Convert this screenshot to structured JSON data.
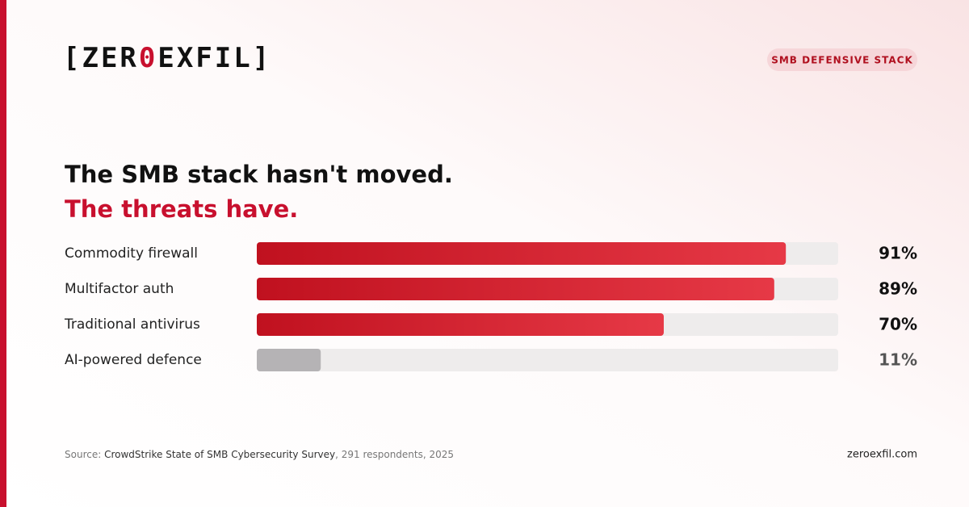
{
  "logo": [
    "[",
    "ZER",
    "0",
    "EXFIL",
    "]"
  ],
  "badge": "SMB DEFENSIVE STACK",
  "chart_data": {
    "type": "hbar",
    "title": "The SMB stack hasn't moved.",
    "subtitle": "The threats have.",
    "categories": [
      "Commodity firewall",
      "Multifactor auth",
      "Traditional antivirus",
      "AI-powered defence"
    ],
    "values": [
      91,
      89,
      70,
      11
    ],
    "value_labels": [
      "91%",
      "89%",
      "70%",
      "11%"
    ],
    "colors": [
      "#c8102e",
      "#c8102e",
      "#c8102e",
      "#b5b3b5"
    ],
    "xlim": [
      0,
      100
    ]
  },
  "source": {
    "label": "Source:",
    "name": "CrowdStrike State of SMB Cybersecurity Survey",
    "detail": ", 291 respondents, 2025"
  },
  "site": "zeroexfil.com"
}
